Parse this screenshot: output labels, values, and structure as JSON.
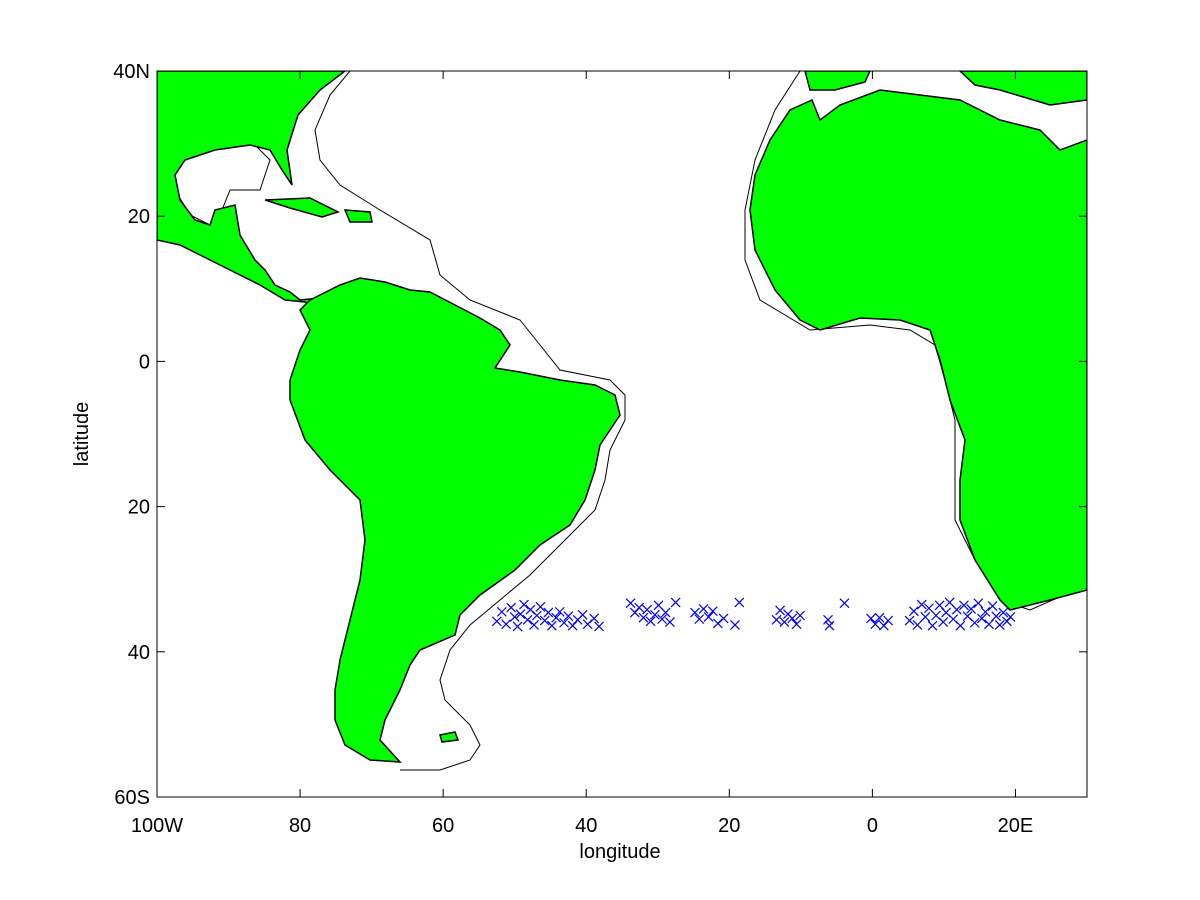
{
  "chart_data": {
    "type": "scatter",
    "xlabel": "longitude",
    "ylabel": "latitude",
    "xlim": [
      -100,
      30
    ],
    "ylim": [
      -60,
      40
    ],
    "xticks": [
      {
        "value": -100,
        "label": "100W"
      },
      {
        "value": -80,
        "label": "80"
      },
      {
        "value": -60,
        "label": "60"
      },
      {
        "value": -40,
        "label": "40"
      },
      {
        "value": -20,
        "label": "20"
      },
      0,
      {
        "value": 20,
        "label": "20E"
      }
    ],
    "yticks": [
      {
        "value": 40,
        "label": "40N"
      },
      20,
      0,
      {
        "value": -20,
        "label": "20"
      },
      {
        "value": -40,
        "label": "40"
      },
      {
        "value": -60,
        "label": "60S"
      }
    ],
    "color": "#0000ff",
    "marker": "x",
    "x": [
      -52.5,
      -51.8,
      -51.2,
      -50.5,
      -50,
      -49.6,
      -49.2,
      -48.7,
      -48.2,
      -47.8,
      -47.3,
      -46.9,
      -46.4,
      -45.8,
      -45.3,
      -44.8,
      -44.2,
      -43.7,
      -43.1,
      -42.5,
      -41.9,
      -41.2,
      -40.5,
      -39.8,
      -38.9,
      -38.2,
      -33.8,
      -33.2,
      -32.6,
      -32,
      -31.5,
      -31,
      -30.4,
      -29.9,
      -29.4,
      -28.9,
      -28.3,
      -27.5,
      -24.8,
      -24.2,
      -23.6,
      -22.9,
      -22.3,
      -21.6,
      -20.8,
      -19.2,
      -18.6,
      -13.4,
      -12.9,
      -12.3,
      -11.8,
      -11.2,
      -10.6,
      -10.1,
      -6,
      -6.2,
      -3.9,
      -0.2,
      0.4,
      1,
      1.6,
      2.2,
      5.2,
      5.8,
      6.3,
      6.9,
      7.4,
      7.9,
      8.4,
      8.9,
      9.4,
      9.9,
      10.3,
      10.8,
      11.3,
      11.8,
      12.3,
      12.8,
      13.3,
      13.8,
      14.3,
      14.8,
      15.3,
      15.8,
      16.3,
      16.8,
      17.3,
      17.8,
      18.3,
      18.8,
      19.3
    ],
    "values": [
      -35.8,
      -34.5,
      -36.2,
      -33.9,
      -35.2,
      -36.5,
      -34.8,
      -33.5,
      -35.6,
      -34.2,
      -36.3,
      -35,
      -33.8,
      -35.7,
      -34.6,
      -36.4,
      -35.3,
      -34.5,
      -36,
      -35.1,
      -36.4,
      -35.6,
      -34.9,
      -36.2,
      -35.4,
      -36.5,
      -33.3,
      -34.6,
      -33.9,
      -35.3,
      -34.2,
      -35.8,
      -34.9,
      -33.6,
      -35.5,
      -34.6,
      -35.9,
      -33.2,
      -34.6,
      -35.5,
      -34.1,
      -35.2,
      -34.4,
      -36.1,
      -35.4,
      -36.3,
      -33.2,
      -35.6,
      -34.3,
      -35.9,
      -34.8,
      -35.4,
      -36.2,
      -35,
      -36.4,
      -35.6,
      -33.3,
      -35.4,
      -36.2,
      -35.3,
      -36.4,
      -35.7,
      -35.7,
      -34.4,
      -36.3,
      -33.5,
      -35.2,
      -34,
      -36.4,
      -35,
      -33.6,
      -35.9,
      -34.6,
      -33.2,
      -35.5,
      -34.2,
      -36.4,
      -33.6,
      -35.1,
      -34.1,
      -36,
      -33.3,
      -35.4,
      -34.5,
      -36.2,
      -33.7,
      -35.1,
      -36.3,
      -34.6,
      -35.8,
      -35.2
    ]
  }
}
